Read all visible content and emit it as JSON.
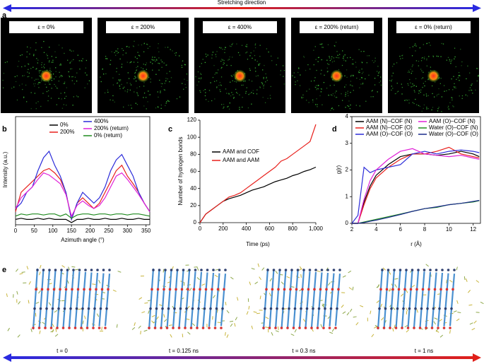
{
  "stretching_direction": "Stretching direction",
  "panel_labels": [
    "a",
    "b",
    "c",
    "d",
    "e"
  ],
  "strain_labels": [
    "ε = 0%",
    "ε = 200%",
    "ε = 400%",
    "ε = 200% (return)",
    "ε = 0% (return)"
  ],
  "time_labels": [
    "t = 0",
    "t = 0.125 ns",
    "t = 0.3 ns",
    "t = 1 ns"
  ],
  "chart_data": [
    {
      "type": "line",
      "xlabel": "Azimuth angle (°)",
      "ylabel": "Intensity (a.u.)",
      "x": [
        0,
        15,
        30,
        45,
        60,
        75,
        90,
        105,
        120,
        135,
        150,
        165,
        180,
        195,
        210,
        225,
        240,
        255,
        270,
        285,
        300,
        315,
        330,
        345,
        360
      ],
      "xlim": [
        0,
        360
      ],
      "xticks": [
        0,
        50,
        100,
        150,
        200,
        250,
        300,
        350
      ],
      "ylim": [
        0,
        1
      ],
      "series": [
        {
          "name": "0%",
          "color": "#000000",
          "values": [
            0.05,
            0.06,
            0.05,
            0.05,
            0.06,
            0.05,
            0.06,
            0.05,
            0.05,
            0.05,
            0.02,
            0.05,
            0.05,
            0.06,
            0.05,
            0.05,
            0.06,
            0.05,
            0.05,
            0.06,
            0.05,
            0.05,
            0.06,
            0.05,
            0.05
          ]
        },
        {
          "name": "200%",
          "color": "#e8201c",
          "values": [
            0.12,
            0.3,
            0.35,
            0.4,
            0.45,
            0.5,
            0.52,
            0.48,
            0.42,
            0.3,
            0.05,
            0.2,
            0.25,
            0.2,
            0.15,
            0.2,
            0.3,
            0.4,
            0.5,
            0.55,
            0.45,
            0.38,
            0.3,
            0.2,
            0.12
          ]
        },
        {
          "name": "400%",
          "color": "#2b2bd9",
          "values": [
            0.15,
            0.2,
            0.3,
            0.35,
            0.5,
            0.62,
            0.68,
            0.55,
            0.45,
            0.3,
            0.05,
            0.2,
            0.3,
            0.25,
            0.2,
            0.25,
            0.35,
            0.5,
            0.6,
            0.65,
            0.55,
            0.45,
            0.3,
            0.2,
            0.12
          ]
        },
        {
          "name": "200% (return)",
          "color": "#e020d8",
          "values": [
            0.15,
            0.25,
            0.3,
            0.35,
            0.42,
            0.48,
            0.46,
            0.42,
            0.38,
            0.28,
            0.08,
            0.18,
            0.22,
            0.18,
            0.15,
            0.18,
            0.25,
            0.35,
            0.45,
            0.48,
            0.42,
            0.35,
            0.28,
            0.2,
            0.12
          ]
        },
        {
          "name": "0% (return)",
          "color": "#1f8a1f",
          "values": [
            0.08,
            0.1,
            0.09,
            0.1,
            0.1,
            0.09,
            0.1,
            0.1,
            0.08,
            0.1,
            0.06,
            0.09,
            0.1,
            0.1,
            0.09,
            0.1,
            0.1,
            0.09,
            0.1,
            0.1,
            0.09,
            0.1,
            0.1,
            0.09,
            0.08
          ]
        }
      ]
    },
    {
      "type": "line",
      "xlabel": "Time (ps)",
      "ylabel": "Number of hydrogen bonds",
      "x": [
        0,
        50,
        100,
        150,
        200,
        250,
        300,
        350,
        400,
        450,
        500,
        550,
        600,
        650,
        700,
        750,
        800,
        850,
        900,
        950,
        1000
      ],
      "xlim": [
        0,
        1000
      ],
      "xticks": [
        0,
        200,
        400,
        600,
        800,
        {
          "value": 1000,
          "label": "1,000"
        }
      ],
      "ylim": [
        0,
        120
      ],
      "yticks": [
        0,
        20,
        40,
        60,
        80,
        100,
        120
      ],
      "series": [
        {
          "name": "AAM and COF",
          "color": "#000000",
          "values": [
            0,
            10,
            15,
            20,
            25,
            28,
            30,
            32,
            35,
            38,
            40,
            42,
            45,
            48,
            50,
            52,
            55,
            57,
            60,
            62,
            65
          ]
        },
        {
          "name": "AAM and AAM",
          "color": "#e8201c",
          "values": [
            0,
            10,
            15,
            20,
            25,
            30,
            32,
            35,
            40,
            45,
            50,
            55,
            60,
            65,
            72,
            75,
            80,
            85,
            90,
            95,
            115
          ]
        }
      ]
    },
    {
      "type": "line",
      "xlabel": "r (Å)",
      "ylabel": "g(r)",
      "x": [
        2,
        2.5,
        3,
        3.5,
        4,
        5,
        6,
        7,
        8,
        9,
        10,
        11,
        12,
        12.5
      ],
      "xlim": [
        2,
        12.6
      ],
      "xticks": [
        2,
        4,
        6,
        8,
        10,
        12
      ],
      "ylim": [
        0,
        4
      ],
      "yticks": [
        0,
        1,
        2,
        3,
        4
      ],
      "series": [
        {
          "name": "AAM (N)–COF (N)",
          "color": "#000000",
          "values": [
            0,
            0,
            0.8,
            1.4,
            1.8,
            2.2,
            2.5,
            2.6,
            2.6,
            2.55,
            2.6,
            2.7,
            2.6,
            2.5
          ]
        },
        {
          "name": "AAM (N)–COF (O)",
          "color": "#e8201c",
          "values": [
            0,
            0,
            0.7,
            1.3,
            1.7,
            2.1,
            2.4,
            2.6,
            2.6,
            2.7,
            2.85,
            2.6,
            2.5,
            2.45
          ]
        },
        {
          "name": "AAM (O)–COF (O)",
          "color": "#2b2bd9",
          "values": [
            0,
            0.3,
            2.1,
            1.9,
            2.0,
            2.1,
            2.2,
            2.6,
            2.7,
            2.6,
            2.7,
            2.75,
            2.7,
            2.65
          ]
        },
        {
          "name": "AAM (O)–COF (N)",
          "color": "#e020d8",
          "values": [
            0,
            0,
            0.9,
            1.6,
            2.0,
            2.4,
            2.7,
            2.8,
            2.6,
            2.55,
            2.5,
            2.55,
            2.45,
            2.4
          ]
        },
        {
          "name": "Water (O)–COF (N)",
          "color": "#1f8a1f",
          "values": [
            0,
            0,
            0.05,
            0.1,
            0.15,
            0.25,
            0.35,
            0.45,
            0.55,
            0.6,
            0.7,
            0.75,
            0.8,
            0.85
          ]
        },
        {
          "name": "Water (O)–COF (O)",
          "color": "#1a2a8a",
          "values": [
            0,
            0,
            0.03,
            0.08,
            0.12,
            0.22,
            0.33,
            0.45,
            0.55,
            0.62,
            0.7,
            0.75,
            0.82,
            0.86
          ]
        }
      ]
    }
  ]
}
